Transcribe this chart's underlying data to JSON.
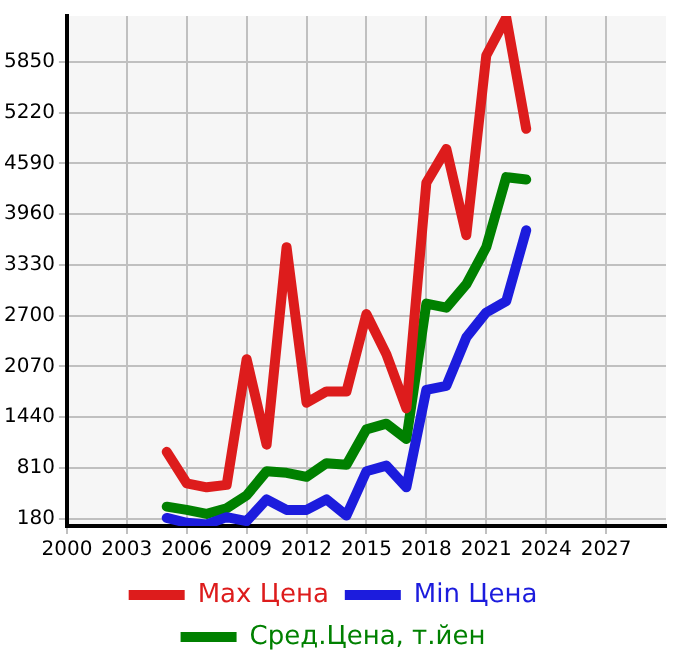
{
  "chart_data": {
    "type": "line",
    "x": [
      2005,
      2006,
      2007,
      2008,
      2009,
      2010,
      2011,
      2012,
      2013,
      2014,
      2015,
      2016,
      2017,
      2018,
      2019,
      2020,
      2021,
      2022,
      2023
    ],
    "series": [
      {
        "name": "Max Цена",
        "color": "#dd1c1c",
        "values": [
          1010,
          620,
          570,
          600,
          2160,
          1100,
          3550,
          1620,
          1760,
          1760,
          2720,
          2220,
          1550,
          4350,
          4770,
          3700,
          5930,
          6400,
          5020
        ]
      },
      {
        "name": "Min Цена",
        "color": "#1c1cdd",
        "values": [
          190,
          130,
          110,
          200,
          150,
          420,
          290,
          290,
          420,
          220,
          770,
          840,
          570,
          1780,
          1830,
          2430,
          2740,
          2880,
          3760
        ]
      },
      {
        "name": "Сред.Цена, т.йен",
        "color": "#008000",
        "values": [
          330,
          290,
          240,
          310,
          470,
          770,
          750,
          700,
          870,
          850,
          1290,
          1360,
          1170,
          2850,
          2800,
          3090,
          3550,
          4420,
          4390
        ]
      }
    ],
    "xlim": [
      2000,
      2030
    ],
    "xticks": [
      2000,
      2003,
      2006,
      2009,
      2012,
      2015,
      2018,
      2021,
      2024,
      2027
    ],
    "ylim": [
      90,
      6420
    ],
    "yticks": [
      180,
      810,
      1440,
      2070,
      2700,
      3330,
      3960,
      4590,
      5220,
      5850
    ],
    "grid": true,
    "legend": "bottom",
    "marker": "none",
    "line_style": "solid"
  }
}
